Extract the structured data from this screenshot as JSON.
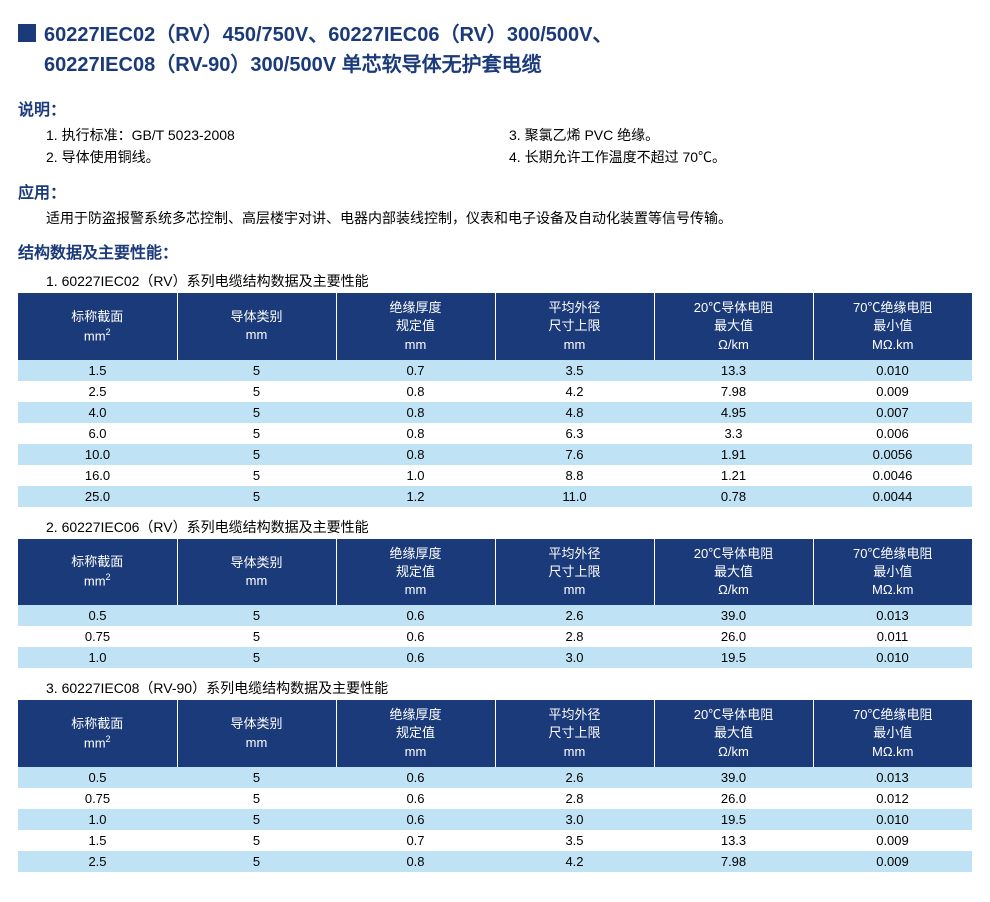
{
  "colors": {
    "primary": "#1b3a7a",
    "row_odd": "#bfe3f5",
    "row_even": "#ffffff",
    "header_text": "#ffffff",
    "body_text": "#000000"
  },
  "title_line1": "60227IEC02（RV）450/750V、60227IEC06（RV）300/500V、",
  "title_line2": "60227IEC08（RV-90）300/500V 单芯软导体无护套电缆",
  "desc_label": "说明：",
  "desc_left": [
    "1. 执行标准：GB/T 5023-2008",
    "2. 导体使用铜线。"
  ],
  "desc_right": [
    "3. 聚氯乙烯 PVC 绝缘。",
    "4. 长期允许工作温度不超过 70℃。"
  ],
  "app_label": "应用：",
  "app_text": "适用于防盗报警系统多芯控制、高层楼宇对讲、电器内部装线控制，仪表和电子设备及自动化装置等信号传输。",
  "struct_label": "结构数据及主要性能：",
  "tables": [
    {
      "caption": "1. 60227IEC02（RV）系列电缆结构数据及主要性能",
      "rows": [
        [
          "1.5",
          "5",
          "0.7",
          "3.5",
          "13.3",
          "0.010"
        ],
        [
          "2.5",
          "5",
          "0.8",
          "4.2",
          "7.98",
          "0.009"
        ],
        [
          "4.0",
          "5",
          "0.8",
          "4.8",
          "4.95",
          "0.007"
        ],
        [
          "6.0",
          "5",
          "0.8",
          "6.3",
          "3.3",
          "0.006"
        ],
        [
          "10.0",
          "5",
          "0.8",
          "7.6",
          "1.91",
          "0.0056"
        ],
        [
          "16.0",
          "5",
          "1.0",
          "8.8",
          "1.21",
          "0.0046"
        ],
        [
          "25.0",
          "5",
          "1.2",
          "11.0",
          "0.78",
          "0.0044"
        ]
      ]
    },
    {
      "caption": "2. 60227IEC06（RV）系列电缆结构数据及主要性能",
      "rows": [
        [
          "0.5",
          "5",
          "0.6",
          "2.6",
          "39.0",
          "0.013"
        ],
        [
          "0.75",
          "5",
          "0.6",
          "2.8",
          "26.0",
          "0.011"
        ],
        [
          "1.0",
          "5",
          "0.6",
          "3.0",
          "19.5",
          "0.010"
        ]
      ]
    },
    {
      "caption": "3.  60227IEC08（RV-90）系列电缆结构数据及主要性能",
      "rows": [
        [
          "0.5",
          "5",
          "0.6",
          "2.6",
          "39.0",
          "0.013"
        ],
        [
          "0.75",
          "5",
          "0.6",
          "2.8",
          "26.0",
          "0.012"
        ],
        [
          "1.0",
          "5",
          "0.6",
          "3.0",
          "19.5",
          "0.010"
        ],
        [
          "1.5",
          "5",
          "0.7",
          "3.5",
          "13.3",
          "0.009"
        ],
        [
          "2.5",
          "5",
          "0.8",
          "4.2",
          "7.98",
          "0.009"
        ]
      ]
    }
  ],
  "headers": {
    "c1a": "标称截面",
    "c1b": "mm",
    "c2a": "导体类别",
    "c2b": "mm",
    "c3a": "绝缘厚度",
    "c3b": "规定值",
    "c3c": "mm",
    "c4a": "平均外径",
    "c4b": "尺寸上限",
    "c4c": "mm",
    "c5a": "20℃导体电阻",
    "c5b": "最大值",
    "c5c": "Ω/km",
    "c6a": "70℃绝缘电阻",
    "c6b": "最小值",
    "c6c": "MΩ.km"
  }
}
